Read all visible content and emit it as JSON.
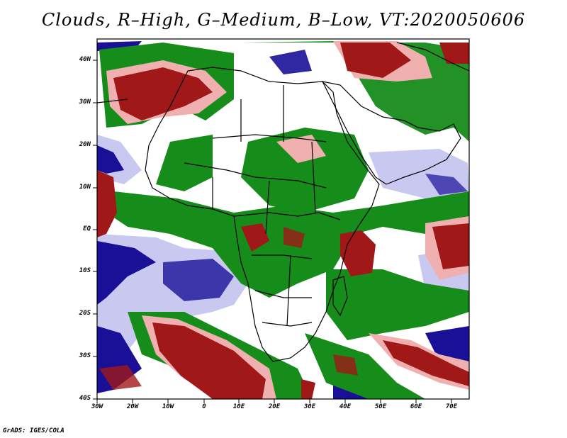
{
  "title": "Clouds, R–High, G–Medium, B–Low, VT:2020050606",
  "credit": "GrADS: IGES/COLA",
  "colors": {
    "high": "#a01818",
    "high_light": "#f0b0b0",
    "medium": "#168c1a",
    "low": "#1a1098",
    "low_light": "#c8c8f0",
    "land": "#ffffff",
    "border": "#000000"
  },
  "axes": {
    "lat_labels": [
      "40N",
      "30N",
      "20N",
      "10N",
      "EQ",
      "10S",
      "20S",
      "30S",
      "40S"
    ],
    "lon_labels": [
      "30W",
      "20W",
      "10W",
      "0",
      "10E",
      "20E",
      "30E",
      "40E",
      "50E",
      "60E",
      "70E"
    ]
  }
}
